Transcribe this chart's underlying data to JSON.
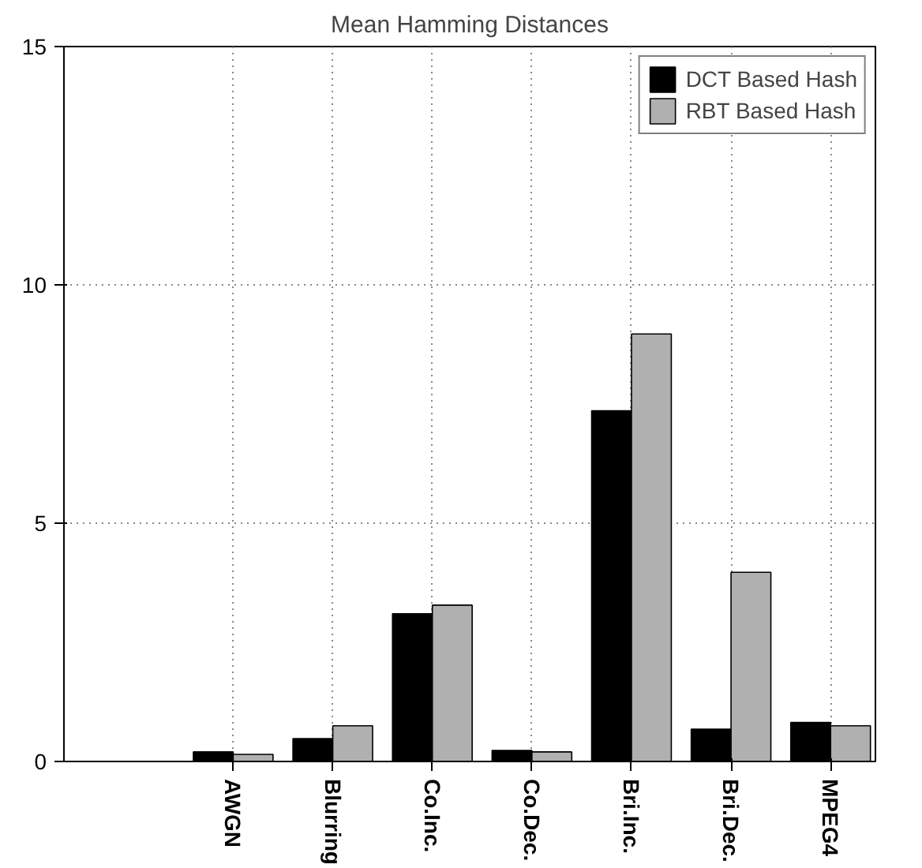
{
  "chart_data": {
    "type": "bar",
    "title": "Mean Hamming Distances",
    "categories": [
      "AWGN",
      "Blurring",
      "Co.Inc.",
      "Co.Dec.",
      "Bri.Inc.",
      "Bri.Dec.",
      "MPEG4"
    ],
    "series": [
      {
        "name": "DCT Based Hash",
        "color": "#000000",
        "values": [
          0.2,
          0.48,
          3.1,
          0.23,
          7.36,
          0.68,
          0.82
        ]
      },
      {
        "name": "RBT Based Hash",
        "color": "#b0b0b0",
        "values": [
          0.15,
          0.75,
          3.28,
          0.2,
          8.97,
          3.97,
          0.75
        ]
      }
    ],
    "ylim": [
      0,
      15
    ],
    "yticks": [
      0,
      5,
      10,
      15
    ],
    "grid": true,
    "legend": "top right"
  }
}
